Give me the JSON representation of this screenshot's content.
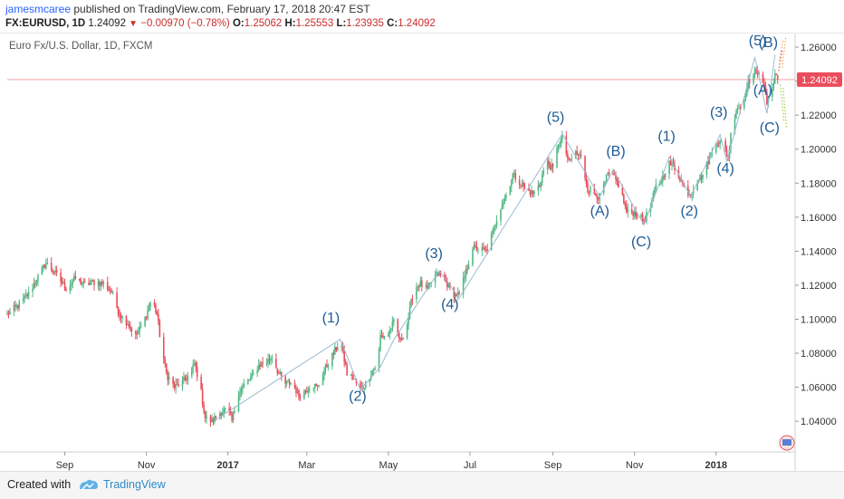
{
  "header": {
    "author": "jamesmcaree",
    "published": " published on TradingView.com, February 17, 2018 20:47 EST",
    "symbol": "FX:EURUSD, 1D",
    "last": "1.24092",
    "change": "−0.00970 (−0.78%)",
    "o_label": "O:",
    "o_val": "1.25062",
    "h_label": "H:",
    "h_val": "1.25553",
    "l_label": "L:",
    "l_val": "1.23935",
    "c_label": "C:",
    "c_val": "1.24092"
  },
  "footer": {
    "created_with": "Created with",
    "brand": "TradingView"
  },
  "colors": {
    "up": "#53b987",
    "down": "#eb4d5c",
    "wave_text": "#1e5b93",
    "price_line": "#f2a0a0",
    "price_badge": "#eb4d5c",
    "wave_line": "#9cbad3"
  },
  "chart_data": {
    "type": "candlestick",
    "title": "Euro Fx/U.S. Dollar, 1D, FXCM",
    "last_price_label": "1.24092",
    "last_price": 1.24092,
    "ylim": [
      1.022,
      1.268
    ],
    "y_ticks": [
      "1.26000",
      "1.24000",
      "1.22000",
      "1.20000",
      "1.18000",
      "1.16000",
      "1.14000",
      "1.12000",
      "1.10000",
      "1.08000",
      "1.06000",
      "1.04000"
    ],
    "x_ticks": [
      {
        "label": "Sep",
        "date": "2016-09-01",
        "bold": false
      },
      {
        "label": "Nov",
        "date": "2016-11-01",
        "bold": false
      },
      {
        "label": "2017",
        "date": "2017-01-01",
        "bold": true
      },
      {
        "label": "Mar",
        "date": "2017-03-01",
        "bold": false
      },
      {
        "label": "May",
        "date": "2017-05-01",
        "bold": false
      },
      {
        "label": "Jul",
        "date": "2017-07-01",
        "bold": false
      },
      {
        "label": "Sep",
        "date": "2017-09-01",
        "bold": false
      },
      {
        "label": "Nov",
        "date": "2017-11-01",
        "bold": false
      },
      {
        "label": "2018",
        "date": "2018-01-01",
        "bold": true
      }
    ],
    "x_range": [
      "2016-07-20",
      "2018-02-25"
    ],
    "grid": false,
    "closes": [
      {
        "date": "2016-07-20",
        "close": 1.103
      },
      {
        "date": "2016-07-28",
        "close": 1.108
      },
      {
        "date": "2016-08-05",
        "close": 1.115
      },
      {
        "date": "2016-08-12",
        "close": 1.125
      },
      {
        "date": "2016-08-18",
        "close": 1.133
      },
      {
        "date": "2016-08-25",
        "close": 1.127
      },
      {
        "date": "2016-09-02",
        "close": 1.118
      },
      {
        "date": "2016-09-09",
        "close": 1.124
      },
      {
        "date": "2016-09-16",
        "close": 1.12
      },
      {
        "date": "2016-09-23",
        "close": 1.122
      },
      {
        "date": "2016-09-30",
        "close": 1.121
      },
      {
        "date": "2016-10-06",
        "close": 1.116
      },
      {
        "date": "2016-10-12",
        "close": 1.103
      },
      {
        "date": "2016-10-18",
        "close": 1.098
      },
      {
        "date": "2016-10-24",
        "close": 1.09
      },
      {
        "date": "2016-10-30",
        "close": 1.098
      },
      {
        "date": "2016-11-05",
        "close": 1.112
      },
      {
        "date": "2016-11-09",
        "close": 1.103
      },
      {
        "date": "2016-11-12",
        "close": 1.085
      },
      {
        "date": "2016-11-16",
        "close": 1.068
      },
      {
        "date": "2016-11-22",
        "close": 1.06
      },
      {
        "date": "2016-11-28",
        "close": 1.063
      },
      {
        "date": "2016-12-03",
        "close": 1.067
      },
      {
        "date": "2016-12-07",
        "close": 1.074
      },
      {
        "date": "2016-12-11",
        "close": 1.062
      },
      {
        "date": "2016-12-15",
        "close": 1.042
      },
      {
        "date": "2016-12-20",
        "close": 1.04
      },
      {
        "date": "2016-12-26",
        "close": 1.045
      },
      {
        "date": "2017-01-01",
        "close": 1.047
      },
      {
        "date": "2017-01-04",
        "close": 1.04
      },
      {
        "date": "2017-01-09",
        "close": 1.057
      },
      {
        "date": "2017-01-14",
        "close": 1.062
      },
      {
        "date": "2017-01-19",
        "close": 1.066
      },
      {
        "date": "2017-01-24",
        "close": 1.073
      },
      {
        "date": "2017-01-30",
        "close": 1.075
      },
      {
        "date": "2017-02-03",
        "close": 1.078
      },
      {
        "date": "2017-02-08",
        "close": 1.068
      },
      {
        "date": "2017-02-13",
        "close": 1.062
      },
      {
        "date": "2017-02-18",
        "close": 1.063
      },
      {
        "date": "2017-02-23",
        "close": 1.055
      },
      {
        "date": "2017-02-28",
        "close": 1.058
      },
      {
        "date": "2017-03-04",
        "close": 1.062
      },
      {
        "date": "2017-03-09",
        "close": 1.06
      },
      {
        "date": "2017-03-14",
        "close": 1.07
      },
      {
        "date": "2017-03-19",
        "close": 1.077
      },
      {
        "date": "2017-03-23",
        "close": 1.083
      },
      {
        "date": "2017-03-26",
        "close": 1.088
      },
      {
        "date": "2017-03-31",
        "close": 1.068
      },
      {
        "date": "2017-04-05",
        "close": 1.065
      },
      {
        "date": "2017-04-10",
        "close": 1.059
      },
      {
        "date": "2017-04-14",
        "close": 1.062
      },
      {
        "date": "2017-04-19",
        "close": 1.07
      },
      {
        "date": "2017-04-23",
        "close": 1.073
      },
      {
        "date": "2017-04-25",
        "close": 1.09
      },
      {
        "date": "2017-04-30",
        "close": 1.09
      },
      {
        "date": "2017-05-05",
        "close": 1.098
      },
      {
        "date": "2017-05-10",
        "close": 1.087
      },
      {
        "date": "2017-05-15",
        "close": 1.097
      },
      {
        "date": "2017-05-20",
        "close": 1.118
      },
      {
        "date": "2017-05-25",
        "close": 1.121
      },
      {
        "date": "2017-05-30",
        "close": 1.117
      },
      {
        "date": "2017-06-04",
        "close": 1.125
      },
      {
        "date": "2017-06-08",
        "close": 1.127
      },
      {
        "date": "2017-06-13",
        "close": 1.122
      },
      {
        "date": "2017-06-18",
        "close": 1.115
      },
      {
        "date": "2017-06-23",
        "close": 1.114
      },
      {
        "date": "2017-06-28",
        "close": 1.128
      },
      {
        "date": "2017-07-03",
        "close": 1.142
      },
      {
        "date": "2017-07-08",
        "close": 1.141
      },
      {
        "date": "2017-07-13",
        "close": 1.14
      },
      {
        "date": "2017-07-18",
        "close": 1.151
      },
      {
        "date": "2017-07-23",
        "close": 1.165
      },
      {
        "date": "2017-07-28",
        "close": 1.173
      },
      {
        "date": "2017-08-02",
        "close": 1.185
      },
      {
        "date": "2017-08-07",
        "close": 1.181
      },
      {
        "date": "2017-08-12",
        "close": 1.176
      },
      {
        "date": "2017-08-17",
        "close": 1.174
      },
      {
        "date": "2017-08-22",
        "close": 1.179
      },
      {
        "date": "2017-08-27",
        "close": 1.193
      },
      {
        "date": "2017-09-01",
        "close": 1.188
      },
      {
        "date": "2017-09-05",
        "close": 1.203
      },
      {
        "date": "2017-09-08",
        "close": 1.206
      },
      {
        "date": "2017-09-13",
        "close": 1.192
      },
      {
        "date": "2017-09-18",
        "close": 1.198
      },
      {
        "date": "2017-09-22",
        "close": 1.195
      },
      {
        "date": "2017-09-27",
        "close": 1.177
      },
      {
        "date": "2017-10-02",
        "close": 1.174
      },
      {
        "date": "2017-10-06",
        "close": 1.172
      },
      {
        "date": "2017-10-12",
        "close": 1.185
      },
      {
        "date": "2017-10-16",
        "close": 1.184
      },
      {
        "date": "2017-10-21",
        "close": 1.178
      },
      {
        "date": "2017-10-26",
        "close": 1.163
      },
      {
        "date": "2017-10-31",
        "close": 1.163
      },
      {
        "date": "2017-11-04",
        "close": 1.161
      },
      {
        "date": "2017-11-08",
        "close": 1.158
      },
      {
        "date": "2017-11-13",
        "close": 1.166
      },
      {
        "date": "2017-11-17",
        "close": 1.178
      },
      {
        "date": "2017-11-22",
        "close": 1.183
      },
      {
        "date": "2017-11-26",
        "close": 1.192
      },
      {
        "date": "2017-11-30",
        "close": 1.19
      },
      {
        "date": "2017-12-04",
        "close": 1.185
      },
      {
        "date": "2017-12-09",
        "close": 1.176
      },
      {
        "date": "2017-12-13",
        "close": 1.174
      },
      {
        "date": "2017-12-18",
        "close": 1.182
      },
      {
        "date": "2017-12-22",
        "close": 1.185
      },
      {
        "date": "2017-12-27",
        "close": 1.195
      },
      {
        "date": "2018-01-02",
        "close": 1.205
      },
      {
        "date": "2018-01-06",
        "close": 1.203
      },
      {
        "date": "2018-01-10",
        "close": 1.195
      },
      {
        "date": "2018-01-13",
        "close": 1.215
      },
      {
        "date": "2018-01-17",
        "close": 1.225
      },
      {
        "date": "2018-01-21",
        "close": 1.224
      },
      {
        "date": "2018-01-24",
        "close": 1.238
      },
      {
        "date": "2018-01-27",
        "close": 1.242
      },
      {
        "date": "2018-01-30",
        "close": 1.245
      },
      {
        "date": "2018-02-02",
        "close": 1.246
      },
      {
        "date": "2018-02-05",
        "close": 1.24
      },
      {
        "date": "2018-02-08",
        "close": 1.227
      },
      {
        "date": "2018-02-11",
        "close": 1.232
      },
      {
        "date": "2018-02-14",
        "close": 1.245
      },
      {
        "date": "2018-02-16",
        "close": 1.241
      }
    ],
    "wave_path": [
      {
        "date": "2016-12-22",
        "price": 1.0405
      },
      {
        "date": "2017-03-26",
        "price": 1.0882
      },
      {
        "date": "2017-04-10",
        "price": 1.0585
      },
      {
        "date": "2017-04-25",
        "price": 1.072
      },
      {
        "date": "2017-05-05",
        "price": 1.088
      },
      {
        "date": "2017-06-08",
        "price": 1.1285
      },
      {
        "date": "2017-06-23",
        "price": 1.1125
      },
      {
        "date": "2017-09-08",
        "price": 1.209
      },
      {
        "date": "2017-10-06",
        "price": 1.172
      },
      {
        "date": "2017-10-16",
        "price": 1.188
      },
      {
        "date": "2017-11-08",
        "price": 1.1555
      },
      {
        "date": "2017-11-27",
        "price": 1.1955
      },
      {
        "date": "2017-12-13",
        "price": 1.172
      },
      {
        "date": "2018-01-04",
        "price": 1.2085
      },
      {
        "date": "2018-01-09",
        "price": 1.193
      },
      {
        "date": "2018-01-30",
        "price": 1.254
      },
      {
        "date": "2018-02-08",
        "price": 1.221
      },
      {
        "date": "2018-02-14",
        "price": 1.2555
      }
    ],
    "wave_labels": [
      {
        "text": "(1)",
        "date": "2017-03-19",
        "price": 1.0982
      },
      {
        "text": "(2)",
        "date": "2017-04-08",
        "price": 1.052
      },
      {
        "text": "(3)",
        "date": "2017-06-04",
        "price": 1.136
      },
      {
        "text": "(4)",
        "date": "2017-06-16",
        "price": 1.106
      },
      {
        "text": "(5)",
        "date": "2017-09-03",
        "price": 1.216
      },
      {
        "text": "(A)",
        "date": "2017-10-06",
        "price": 1.161
      },
      {
        "text": "(B)",
        "date": "2017-10-18",
        "price": 1.196
      },
      {
        "text": "(C)",
        "date": "2017-11-06",
        "price": 1.143
      },
      {
        "text": "(1)",
        "date": "2017-11-25",
        "price": 1.205
      },
      {
        "text": "(2)",
        "date": "2017-12-12",
        "price": 1.161
      },
      {
        "text": "(3)",
        "date": "2018-01-03",
        "price": 1.219
      },
      {
        "text": "(4)",
        "date": "2018-01-08",
        "price": 1.186
      },
      {
        "text": "(5)",
        "date": "2018-02-01",
        "price": 1.261
      },
      {
        "text": "(B)",
        "date": "2018-02-09",
        "price": 1.26
      },
      {
        "text": "(A)",
        "date": "2018-02-05",
        "price": 1.232
      },
      {
        "text": "(C)",
        "date": "2018-02-10",
        "price": 1.21
      }
    ]
  }
}
